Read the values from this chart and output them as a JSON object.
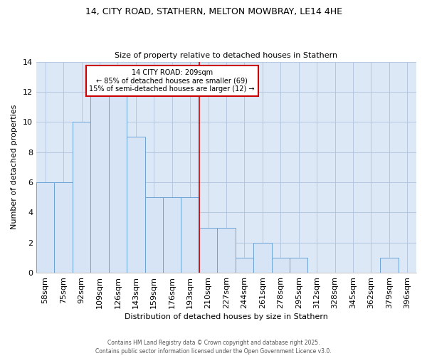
{
  "title1": "14, CITY ROAD, STATHERN, MELTON MOWBRAY, LE14 4HE",
  "title2": "Size of property relative to detached houses in Stathern",
  "xlabel": "Distribution of detached houses by size in Stathern",
  "ylabel": "Number of detached properties",
  "footer": "Contains HM Land Registry data © Crown copyright and database right 2025.\nContains public sector information licensed under the Open Government Licence v3.0.",
  "bin_labels": [
    "58sqm",
    "75sqm",
    "92sqm",
    "109sqm",
    "126sqm",
    "143sqm",
    "159sqm",
    "176sqm",
    "193sqm",
    "210sqm",
    "227sqm",
    "244sqm",
    "261sqm",
    "278sqm",
    "295sqm",
    "312sqm",
    "328sqm",
    "345sqm",
    "362sqm",
    "379sqm",
    "396sqm"
  ],
  "bin_values": [
    6,
    6,
    10,
    12,
    12,
    9,
    5,
    5,
    5,
    3,
    3,
    1,
    2,
    1,
    1,
    0,
    0,
    0,
    0,
    1,
    0
  ],
  "bar_color": "#d6e4f5",
  "bar_edgecolor": "#6ba3d6",
  "vline_position": 8.5,
  "annotation_text": "14 CITY ROAD: 209sqm\n← 85% of detached houses are smaller (69)\n15% of semi-detached houses are larger (12) →",
  "annotation_box_color": "#ffffff",
  "annotation_box_edgecolor": "#cc0000",
  "vline_color": "#cc0000",
  "ylim": [
    0,
    14
  ],
  "yticks": [
    0,
    2,
    4,
    6,
    8,
    10,
    12,
    14
  ],
  "plot_bg_color": "#dce8f5",
  "background_color": "#ffffff",
  "grid_color": "#b0c4de"
}
